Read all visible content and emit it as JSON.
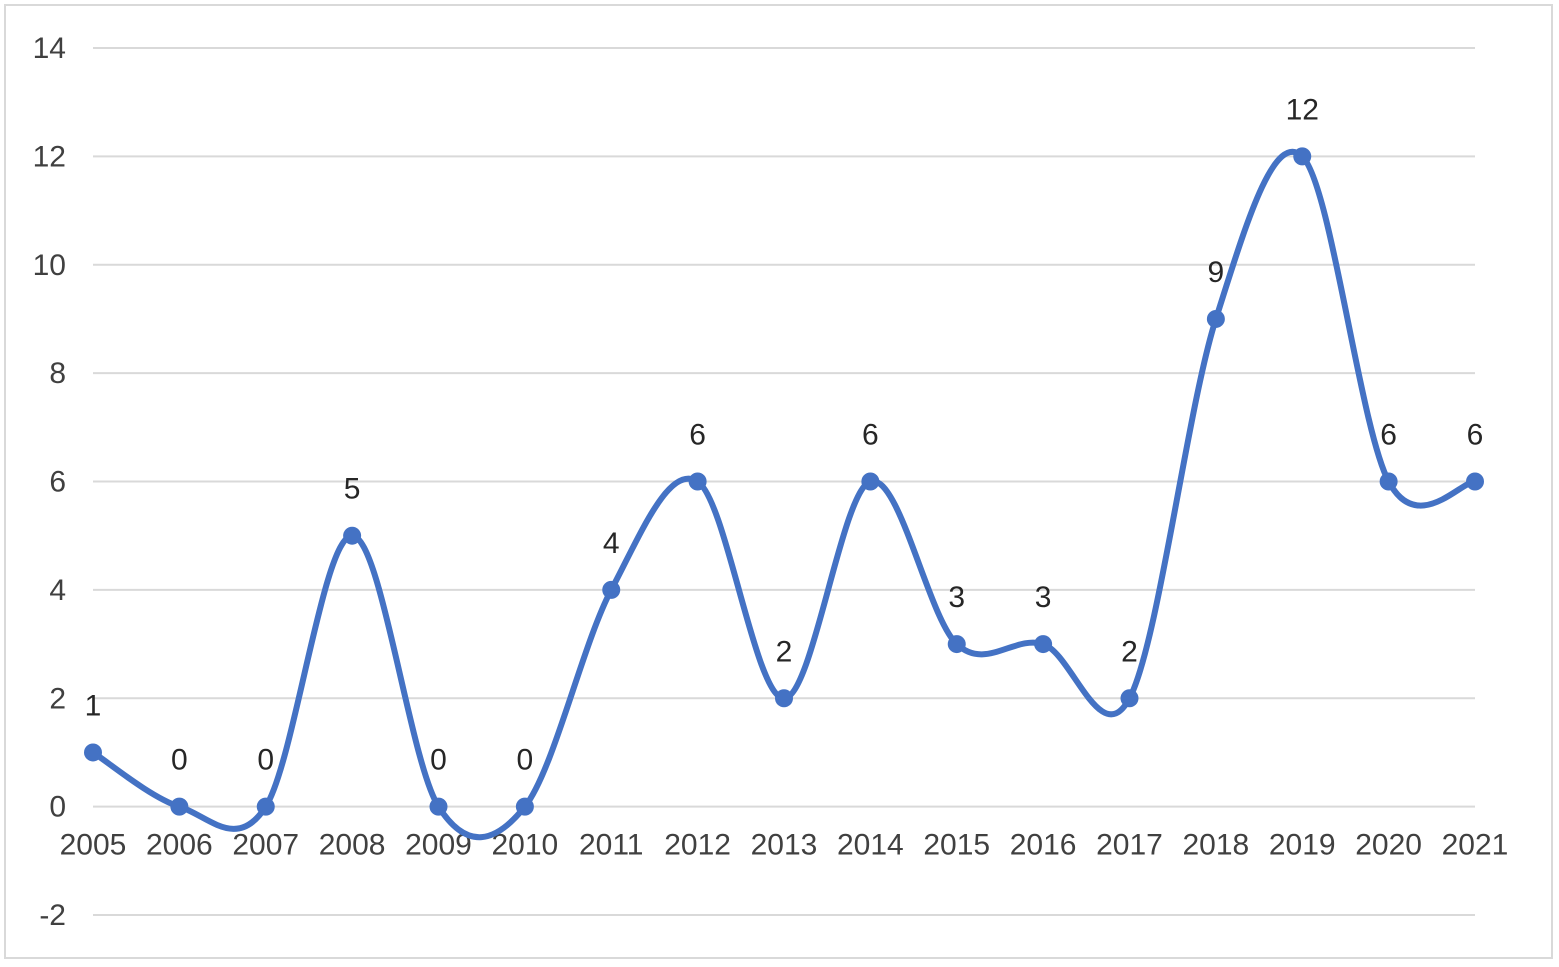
{
  "chart_data": {
    "type": "line",
    "smooth": true,
    "title": "",
    "xlabel": "",
    "ylabel": "",
    "categories": [
      "2005",
      "2006",
      "2007",
      "2008",
      "2009",
      "2010",
      "2011",
      "2012",
      "2013",
      "2014",
      "2015",
      "2016",
      "2017",
      "2018",
      "2019",
      "2020",
      "2021"
    ],
    "series": [
      {
        "values": [
          1,
          0,
          0,
          5,
          0,
          0,
          4,
          6,
          2,
          6,
          3,
          3,
          2,
          9,
          12,
          6,
          6
        ]
      }
    ],
    "ylim": [
      -2,
      14
    ],
    "yticks": [
      -2,
      0,
      2,
      4,
      6,
      8,
      10,
      12,
      14
    ],
    "grid": true,
    "legend": "none",
    "data_labels": true,
    "colors": {
      "line": "#4472C4",
      "grid": "#d9d9d9",
      "frame": "#d9d9d9"
    }
  }
}
